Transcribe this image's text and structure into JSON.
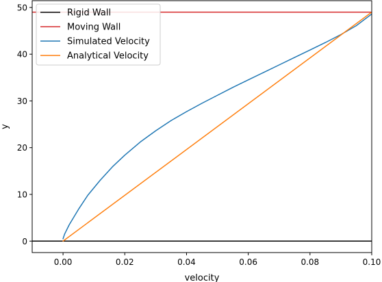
{
  "chart_data": {
    "type": "line",
    "xlabel": "velocity",
    "ylabel": "y",
    "xlim": [
      -0.01,
      0.1
    ],
    "ylim": [
      -2.45,
      51.45
    ],
    "xticks": [
      {
        "value": 0.0,
        "label": "0.00"
      },
      {
        "value": 0.02,
        "label": "0.02"
      },
      {
        "value": 0.04,
        "label": "0.04"
      },
      {
        "value": 0.06,
        "label": "0.06"
      },
      {
        "value": 0.08,
        "label": "0.08"
      },
      {
        "value": 0.1,
        "label": "0.10"
      }
    ],
    "yticks": [
      {
        "value": 0,
        "label": "0"
      },
      {
        "value": 10,
        "label": "10"
      },
      {
        "value": 20,
        "label": "20"
      },
      {
        "value": 30,
        "label": "30"
      },
      {
        "value": 40,
        "label": "40"
      },
      {
        "value": 50,
        "label": "50"
      }
    ],
    "legend_position": "top-left",
    "grid": false,
    "series": [
      {
        "name": "Rigid Wall",
        "color": "#000000",
        "kind": "hline",
        "y": 0
      },
      {
        "name": "Moving Wall",
        "color": "#d62728",
        "kind": "hline",
        "y": 49
      },
      {
        "name": "Simulated Velocity",
        "color": "#1f77b4",
        "kind": "line",
        "points": [
          [
            0.0,
            0.5
          ],
          [
            0.0005,
            1.5
          ],
          [
            0.002,
            3.5
          ],
          [
            0.005,
            6.8
          ],
          [
            0.008,
            9.8
          ],
          [
            0.012,
            13.0
          ],
          [
            0.016,
            15.9
          ],
          [
            0.02,
            18.4
          ],
          [
            0.025,
            21.2
          ],
          [
            0.03,
            23.6
          ],
          [
            0.035,
            25.8
          ],
          [
            0.04,
            27.7
          ],
          [
            0.045,
            29.5
          ],
          [
            0.05,
            31.2
          ],
          [
            0.055,
            32.9
          ],
          [
            0.06,
            34.5
          ],
          [
            0.065,
            36.1
          ],
          [
            0.07,
            37.7
          ],
          [
            0.075,
            39.3
          ],
          [
            0.08,
            40.9
          ],
          [
            0.085,
            42.5
          ],
          [
            0.09,
            44.2
          ],
          [
            0.095,
            46.1
          ],
          [
            0.1,
            48.6
          ]
        ]
      },
      {
        "name": "Analytical Velocity",
        "color": "#ff7f0e",
        "kind": "line",
        "points": [
          [
            0.0,
            0.0
          ],
          [
            0.1,
            49.0
          ]
        ]
      }
    ]
  }
}
